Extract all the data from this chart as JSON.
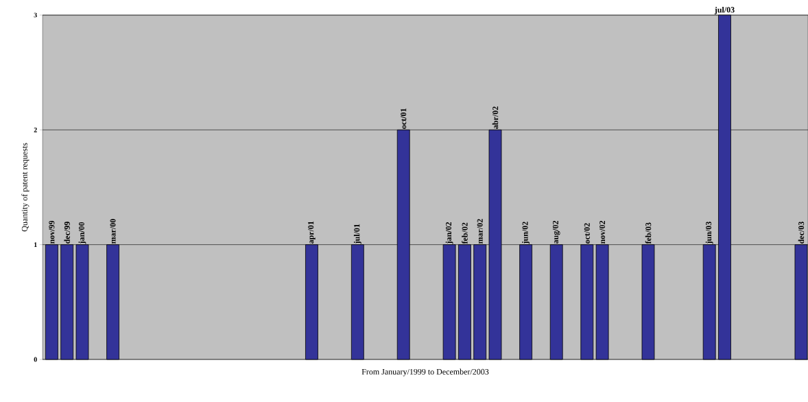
{
  "chart_data": {
    "type": "bar",
    "xlabel": "From January/1999 to December/2003",
    "ylabel": "Quantity of patent requests",
    "categories": [
      "nov/99",
      "dec/99",
      "jan/00",
      null,
      "mar/00",
      null,
      null,
      null,
      null,
      null,
      null,
      null,
      null,
      null,
      null,
      null,
      null,
      "apr/01",
      null,
      null,
      "jul/01",
      null,
      null,
      "oct/01",
      null,
      null,
      "jan/02",
      "feb/02",
      "mar/02",
      "abr/02",
      null,
      "jun/02",
      null,
      "aug/02",
      null,
      "oct/02",
      "nov/02",
      null,
      null,
      "feb/03",
      null,
      null,
      null,
      "jun/03",
      "jul/03",
      null,
      null,
      null,
      null,
      "dec/03"
    ],
    "values": [
      1,
      1,
      1,
      null,
      1,
      null,
      null,
      null,
      null,
      null,
      null,
      null,
      null,
      null,
      null,
      null,
      null,
      1,
      null,
      null,
      1,
      null,
      null,
      2,
      null,
      null,
      1,
      1,
      1,
      2,
      null,
      1,
      null,
      1,
      null,
      1,
      1,
      null,
      null,
      1,
      null,
      null,
      null,
      1,
      3,
      null,
      null,
      null,
      null,
      1
    ],
    "color": "#333399",
    "ylim": [
      0,
      3
    ],
    "yticks": [
      0,
      1,
      2,
      3
    ],
    "grid": "y"
  }
}
